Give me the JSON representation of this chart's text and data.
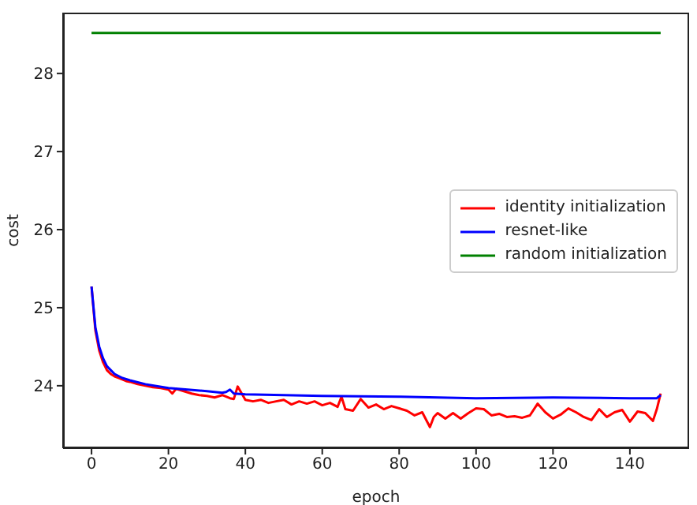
{
  "chart_data": {
    "type": "line",
    "xlabel": "epoch",
    "ylabel": "cost",
    "xlim": [
      -7.4,
      155.4
    ],
    "xticks": [
      0,
      20,
      40,
      60,
      80,
      100,
      120,
      140
    ],
    "ylim": [
      23.2,
      28.78
    ],
    "yticks": [
      24,
      25,
      26,
      27,
      28
    ],
    "grid": false,
    "legend": "center right",
    "marker": "none",
    "line_style": "solid",
    "series": [
      {
        "name": "identity initialization",
        "color": "#ff0000",
        "x": [
          0,
          1,
          2,
          3,
          4,
          5,
          6,
          7,
          8,
          9,
          10,
          12,
          14,
          16,
          18,
          20,
          21,
          22,
          24,
          26,
          28,
          30,
          32,
          34,
          36,
          37,
          38,
          40,
          42,
          44,
          46,
          48,
          50,
          52,
          54,
          56,
          58,
          60,
          62,
          64,
          65,
          66,
          68,
          70,
          72,
          74,
          76,
          78,
          80,
          82,
          84,
          86,
          88,
          89,
          90,
          92,
          94,
          96,
          98,
          100,
          102,
          104,
          106,
          108,
          110,
          112,
          114,
          116,
          118,
          120,
          122,
          124,
          126,
          128,
          130,
          132,
          134,
          136,
          138,
          140,
          142,
          144,
          146,
          147,
          148
        ],
        "values": [
          25.27,
          24.71,
          24.45,
          24.3,
          24.2,
          24.15,
          24.12,
          24.1,
          24.08,
          24.06,
          24.05,
          24.02,
          24.0,
          23.98,
          23.97,
          23.95,
          23.9,
          23.96,
          23.93,
          23.9,
          23.88,
          23.87,
          23.85,
          23.88,
          23.84,
          23.83,
          23.99,
          23.82,
          23.8,
          23.82,
          23.78,
          23.8,
          23.82,
          23.76,
          23.8,
          23.77,
          23.8,
          23.75,
          23.78,
          23.73,
          23.86,
          23.7,
          23.68,
          23.83,
          23.72,
          23.76,
          23.7,
          23.74,
          23.71,
          23.68,
          23.62,
          23.66,
          23.47,
          23.6,
          23.65,
          23.58,
          23.65,
          23.58,
          23.65,
          23.71,
          23.7,
          23.62,
          23.64,
          23.6,
          23.61,
          23.59,
          23.62,
          23.77,
          23.66,
          23.58,
          23.63,
          23.71,
          23.66,
          23.6,
          23.56,
          23.7,
          23.6,
          23.66,
          23.69,
          23.54,
          23.67,
          23.65,
          23.55,
          23.7,
          23.9
        ]
      },
      {
        "name": "resnet-like",
        "color": "#0000ff",
        "x": [
          0,
          1,
          2,
          3,
          4,
          5,
          6,
          8,
          10,
          14,
          20,
          25,
          30,
          34,
          35,
          36,
          37,
          40,
          50,
          60,
          80,
          100,
          120,
          140,
          147,
          148
        ],
        "values": [
          25.27,
          24.75,
          24.5,
          24.35,
          24.25,
          24.2,
          24.15,
          24.1,
          24.07,
          24.02,
          23.97,
          23.95,
          23.93,
          23.91,
          23.92,
          23.95,
          23.9,
          23.89,
          23.88,
          23.87,
          23.86,
          23.84,
          23.85,
          23.84,
          23.84,
          23.88
        ]
      },
      {
        "name": "random initialization",
        "color": "#008000",
        "x": [
          0,
          148
        ],
        "values": [
          28.52,
          28.52
        ]
      }
    ]
  }
}
